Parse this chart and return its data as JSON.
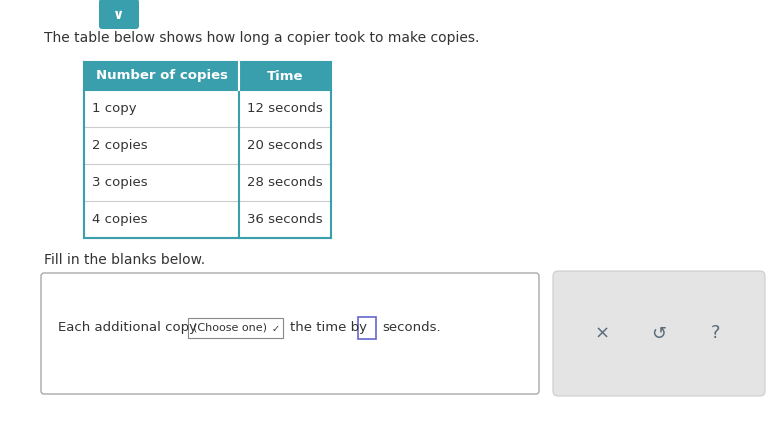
{
  "title_text": "The table below shows how long a copier took to make copies.",
  "subtitle_text": "Fill in the blanks below.",
  "header_col1": "Number of copies",
  "header_col2": "Time",
  "rows": [
    [
      "1 copy",
      "12 seconds"
    ],
    [
      "2 copies",
      "20 seconds"
    ],
    [
      "3 copies",
      "28 seconds"
    ],
    [
      "4 copies",
      "36 seconds"
    ]
  ],
  "header_bg": "#3a9fad",
  "header_text_color": "#ffffff",
  "table_border_color": "#3a9fad",
  "cell_bg": "#ffffff",
  "cell_text_color": "#333333",
  "row_line_color": "#cccccc",
  "body_text_color": "#333333",
  "background_color": "#ffffff",
  "bottom_box_text": "Each additional copy",
  "bottom_box_dropdown": "(Choose one)",
  "bottom_box_middle": "the time by",
  "bottom_box_end": "seconds.",
  "right_box_symbols": [
    "×",
    "↺",
    "?"
  ],
  "right_box_bg": "#e4e4e4",
  "chevron_color": "#3a9fad",
  "input_border_color": "#6666cc",
  "dd_border_color": "#888888",
  "symbol_color": "#5a6a7a"
}
